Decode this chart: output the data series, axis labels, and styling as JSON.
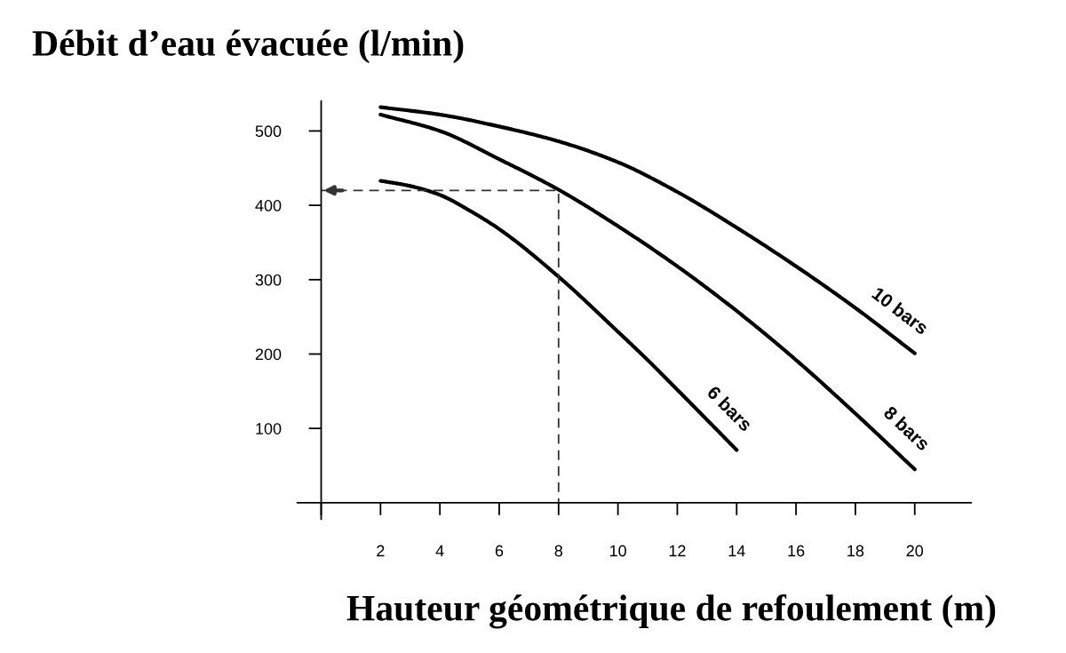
{
  "chart_data": {
    "type": "line",
    "title": "Débit d’eau évacuée (l/min)",
    "xlabel": "Hauteur géométrique de refoulement (m)",
    "xlim": [
      -0.8,
      21.9
    ],
    "ylim": [
      -22,
      540
    ],
    "xticks": [
      {
        "value": 0,
        "label": null
      },
      2,
      4,
      6,
      8,
      10,
      12,
      14,
      16,
      18,
      20
    ],
    "yticks": [
      100,
      200,
      300,
      400,
      500
    ],
    "grid": false,
    "legend": false,
    "marker": "none",
    "series": [
      {
        "name": "10 bars",
        "color": "#000000",
        "x": [
          2,
          4,
          6,
          8,
          10,
          12,
          14,
          16,
          18,
          20
        ],
        "values": [
          532,
          522,
          506,
          486,
          458,
          418,
          370,
          318,
          262,
          201
        ]
      },
      {
        "name": "8 bars",
        "color": "#000000",
        "x": [
          2,
          4,
          6,
          8,
          10,
          12,
          14,
          16,
          18,
          20
        ],
        "values": [
          522,
          500,
          462,
          421,
          372,
          318,
          258,
          192,
          120,
          45
        ]
      },
      {
        "name": "6 bars",
        "color": "#000000",
        "x": [
          2,
          3,
          4,
          5,
          6,
          8,
          10,
          11,
          12,
          14
        ],
        "values": [
          433,
          426,
          414,
          393,
          368,
          304,
          230,
          192,
          152,
          71
        ]
      },
      {
        "color": "#333333",
        "line_style": "dashed",
        "x": [
          0,
          8,
          8
        ],
        "values": [
          420,
          420,
          0
        ]
      }
    ]
  }
}
